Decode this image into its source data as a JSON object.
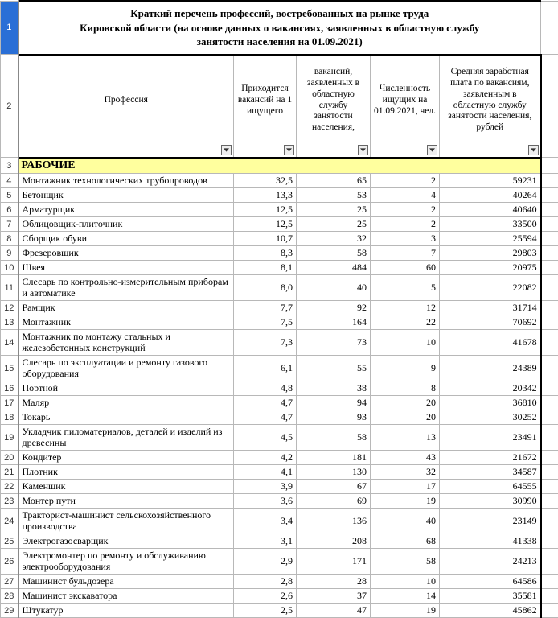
{
  "title_lines": [
    "Краткий перечень профессий, востребованных на рынке труда",
    "Кировской области (на основе данных о вакансиях, заявленных в областную службу",
    "занятости населения на 01.09.2021)"
  ],
  "headers": {
    "col1": "Профессия",
    "col2": "Приходится вакансий на 1 ищущего",
    "col3": "вакансий, заявленных в областную службу занятости населения,",
    "col4": "Численность ищущих на 01.09.2021, чел.",
    "col5": "Средняя заработная плата по вакансиям, заявленным в областную службу занятости населения, рублей"
  },
  "section_label": "РАБОЧИЕ",
  "row_numbers": {
    "title": "1",
    "header": "2",
    "section": "3"
  },
  "rows": [
    {
      "n": "4",
      "p": "Монтажник технологических трубопроводов",
      "a": "32,5",
      "b": "65",
      "c": "2",
      "d": "59231",
      "w": false
    },
    {
      "n": "5",
      "p": "Бетонщик",
      "a": "13,3",
      "b": "53",
      "c": "4",
      "d": "40264",
      "w": false
    },
    {
      "n": "6",
      "p": "Арматурщик",
      "a": "12,5",
      "b": "25",
      "c": "2",
      "d": "40640",
      "w": false
    },
    {
      "n": "7",
      "p": "Облицовщик-плиточник",
      "a": "12,5",
      "b": "25",
      "c": "2",
      "d": "33500",
      "w": false
    },
    {
      "n": "8",
      "p": "Сборщик обуви",
      "a": "10,7",
      "b": "32",
      "c": "3",
      "d": "25594",
      "w": false
    },
    {
      "n": "9",
      "p": "Фрезеровщик",
      "a": "8,3",
      "b": "58",
      "c": "7",
      "d": "29803",
      "w": false
    },
    {
      "n": "10",
      "p": "Швея",
      "a": "8,1",
      "b": "484",
      "c": "60",
      "d": "20975",
      "w": false
    },
    {
      "n": "11",
      "p": "Слесарь по контрольно-измерительным приборам и автоматике",
      "a": "8,0",
      "b": "40",
      "c": "5",
      "d": "22082",
      "w": true
    },
    {
      "n": "12",
      "p": "Рамщик",
      "a": "7,7",
      "b": "92",
      "c": "12",
      "d": "31714",
      "w": false
    },
    {
      "n": "13",
      "p": "Монтажник",
      "a": "7,5",
      "b": "164",
      "c": "22",
      "d": "70692",
      "w": false
    },
    {
      "n": "14",
      "p": "Монтажник по монтажу стальных и железобетонных конструкций",
      "a": "7,3",
      "b": "73",
      "c": "10",
      "d": "41678",
      "w": true
    },
    {
      "n": "15",
      "p": "Слесарь по эксплуатации и ремонту газового оборудования",
      "a": "6,1",
      "b": "55",
      "c": "9",
      "d": "24389",
      "w": true
    },
    {
      "n": "16",
      "p": "Портной",
      "a": "4,8",
      "b": "38",
      "c": "8",
      "d": "20342",
      "w": false
    },
    {
      "n": "17",
      "p": "Маляр",
      "a": "4,7",
      "b": "94",
      "c": "20",
      "d": "36810",
      "w": false
    },
    {
      "n": "18",
      "p": "Токарь",
      "a": "4,7",
      "b": "93",
      "c": "20",
      "d": "30252",
      "w": false
    },
    {
      "n": "19",
      "p": "Укладчик пиломатериалов, деталей и изделий из древесины",
      "a": "4,5",
      "b": "58",
      "c": "13",
      "d": "23491",
      "w": true
    },
    {
      "n": "20",
      "p": "Кондитер",
      "a": "4,2",
      "b": "181",
      "c": "43",
      "d": "21672",
      "w": false
    },
    {
      "n": "21",
      "p": "Плотник",
      "a": "4,1",
      "b": "130",
      "c": "32",
      "d": "34587",
      "w": false
    },
    {
      "n": "22",
      "p": "Каменщик",
      "a": "3,9",
      "b": "67",
      "c": "17",
      "d": "64555",
      "w": false
    },
    {
      "n": "23",
      "p": "Монтер пути",
      "a": "3,6",
      "b": "69",
      "c": "19",
      "d": "30990",
      "w": false
    },
    {
      "n": "24",
      "p": "Тракторист-машинист сельскохозяйственного производства",
      "a": "3,4",
      "b": "136",
      "c": "40",
      "d": "23149",
      "w": true
    },
    {
      "n": "25",
      "p": "Электрогазосварщик",
      "a": "3,1",
      "b": "208",
      "c": "68",
      "d": "41338",
      "w": false
    },
    {
      "n": "26",
      "p": "Электромонтер по ремонту и обслуживанию электрооборудования",
      "a": "2,9",
      "b": "171",
      "c": "58",
      "d": "24213",
      "w": true
    },
    {
      "n": "27",
      "p": "Машинист бульдозера",
      "a": "2,8",
      "b": "28",
      "c": "10",
      "d": "64586",
      "w": false
    },
    {
      "n": "28",
      "p": "Машинист экскаватора",
      "a": "2,6",
      "b": "37",
      "c": "14",
      "d": "35581",
      "w": false
    },
    {
      "n": "29",
      "p": "Штукатур",
      "a": "2,5",
      "b": "47",
      "c": "19",
      "d": "45862",
      "w": false
    }
  ],
  "colors": {
    "section_bg": "#ffff9e",
    "selected_row_bg": "#2a6fd6",
    "grid": "#b8b8b8",
    "thick_border": "#000000"
  }
}
